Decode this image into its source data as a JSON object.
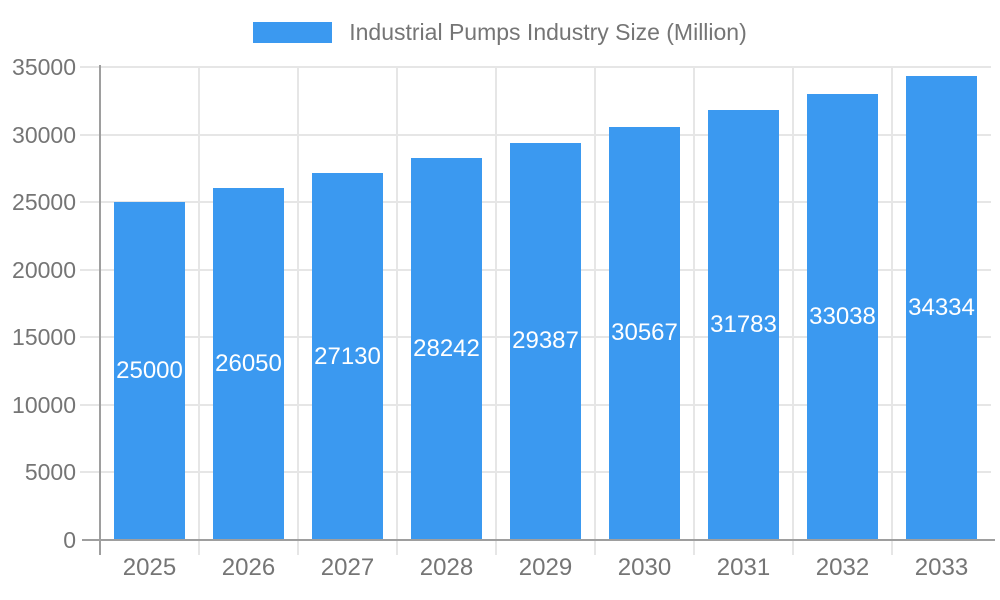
{
  "chart_data": {
    "type": "bar",
    "legend_label": "Industrial Pumps Industry Size (Million)",
    "legend_position": "top",
    "categories": [
      "2025",
      "2026",
      "2027",
      "2028",
      "2029",
      "2030",
      "2031",
      "2032",
      "2033"
    ],
    "values": [
      25000,
      26050,
      27130,
      28242,
      29387,
      30567,
      31783,
      33038,
      34334
    ],
    "annotations": [
      "25000",
      "26050",
      "27130",
      "28242",
      "29387",
      "30567",
      "31783",
      "33038",
      "34334"
    ],
    "yticks": [
      0,
      5000,
      10000,
      15000,
      20000,
      25000,
      30000,
      35000
    ],
    "ylim": [
      0,
      35000
    ],
    "xlabel": "",
    "ylabel": "",
    "grid": true,
    "colors": {
      "bar": "#3B99F0",
      "axis_text": "#757575",
      "legend_text": "#757575",
      "annotation_text": "#ffffff",
      "gridline": "#e6e6e6",
      "axis_line": "#9e9e9e",
      "background": "#ffffff"
    }
  }
}
